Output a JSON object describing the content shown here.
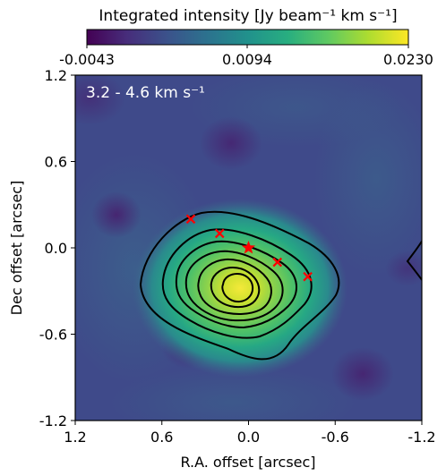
{
  "chart_data": {
    "type": "heatmap",
    "colorbar": {
      "label": "Integrated intensity [Jy beam⁻¹ km s⁻¹]",
      "colormap": "viridis",
      "vmin": -0.0043,
      "vmax": 0.023,
      "ticks": [
        -0.0043,
        0.0094,
        0.023
      ],
      "tick_labels": [
        "-0.0043",
        "0.0094",
        "0.0230"
      ]
    },
    "annotation": "3.2 - 4.6 km s⁻¹",
    "xlabel": "R.A. offset [arcsec]",
    "ylabel": "Dec offset [arcsec]",
    "xlim": [
      1.2,
      -1.2
    ],
    "ylim": [
      -1.2,
      1.2
    ],
    "xticks": [
      1.2,
      0.6,
      0.0,
      -0.6,
      -1.2
    ],
    "yticks": [
      -1.2,
      -0.6,
      0.0,
      0.6,
      1.2
    ],
    "xtick_labels": [
      "1.2",
      "0.6",
      "0.0",
      "-0.6",
      "-1.2"
    ],
    "ytick_labels": [
      "-1.2",
      "-0.6",
      "0.0",
      "0.6",
      "1.2"
    ],
    "emission_peak": {
      "x": 0.04,
      "y": -0.27,
      "value": 0.023
    },
    "contour_levels": 7,
    "markers": {
      "star": {
        "x": 0.0,
        "y": 0.0,
        "color": "#ff0000"
      },
      "crosses": [
        {
          "x": 0.4,
          "y": 0.2
        },
        {
          "x": 0.2,
          "y": 0.1
        },
        {
          "x": -0.2,
          "y": -0.1
        },
        {
          "x": -0.41,
          "y": -0.2
        }
      ],
      "color": "#ff0000"
    }
  }
}
